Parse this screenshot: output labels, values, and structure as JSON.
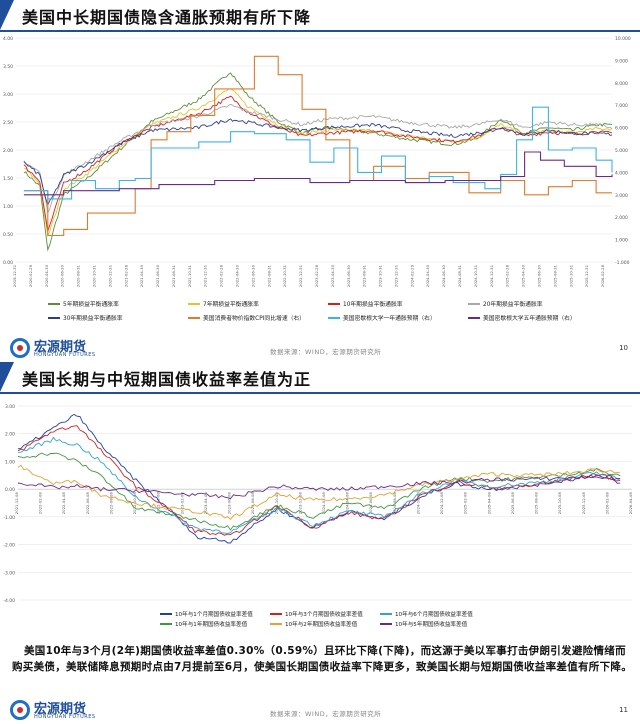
{
  "colors": {
    "accent": "#1f4e9a",
    "source_text": "#888888"
  },
  "brand": {
    "name_cn": "宏源期货",
    "name_en": "HONGYUAN FUTURES"
  },
  "slides": [
    {
      "title": "美国中长期国债隐含通胀预期有所下降",
      "source": "数据来源：WIND，宏源期货研究所",
      "page": "10"
    },
    {
      "title": "美国长期与中短期国债收益率差值为正",
      "source": "数据来源：WIND，宏源期货研究所",
      "page": "11",
      "paragraph": "美国10年与3个月(2年)期国债收益率差值0.30%（0.59%）且环比下降(下降)，而这源于美以军事打击伊朗引发避险情绪而购买美债，美联储降息预期时点由7月提前至6月，使美国长期国债收益率下降更多，致美国长期与短期国债收益率差值有所下降。"
    }
  ],
  "chart_data": [
    {
      "type": "line",
      "title": "",
      "xlabel": "",
      "ylabel": "",
      "ylim": [
        0.0,
        4.0
      ],
      "y_ticks": [
        "0.00",
        "0.50",
        "1.00",
        "1.50",
        "2.00",
        "2.50",
        "3.00",
        "3.50",
        "4.00"
      ],
      "y2lim": [
        -1.0,
        10.0
      ],
      "y2_ticks": [
        "-1.000",
        "1.000",
        "2.000",
        "3.000",
        "4.000",
        "5.000",
        "6.000",
        "7.000",
        "8.000",
        "9.000",
        "10.000"
      ],
      "x_range": [
        "2019-12",
        "2026-03"
      ],
      "x_ticks": [
        "2019-12-31",
        "2020-02-29",
        "2020-04-30",
        "2020-06-30",
        "2020-08-31",
        "2020-10-31",
        "2020-12-31",
        "2021-02-28",
        "2021-04-30",
        "2021-06-30",
        "2021-08-31",
        "2021-10-31",
        "2021-12-31",
        "2022-02-28",
        "2022-04-30",
        "2022-06-30",
        "2022-08-31",
        "2022-10-31",
        "2022-12-31",
        "2023-02-28",
        "2023-04-30",
        "2023-06-30",
        "2023-08-31",
        "2023-10-31",
        "2023-12-31",
        "2024-02-29",
        "2024-04-30",
        "2024-06-30",
        "2024-08-31",
        "2024-10-31",
        "2024-12-31",
        "2025-02-28",
        "2025-04-30",
        "2025-06-30",
        "2025-08-31",
        "2025-10-31",
        "2025-12-31",
        "2026-02-28"
      ],
      "legend_placement": "bottom",
      "series": [
        {
          "name": "5年期损益平衡通胀率",
          "color": "#5b8f3a",
          "axis": "left",
          "x": [
            "2020-01",
            "2020-03",
            "2020-04",
            "2020-06",
            "2020-09",
            "2021-01",
            "2021-05",
            "2021-11",
            "2022-03",
            "2022-05",
            "2022-09",
            "2022-12",
            "2023-03",
            "2023-09",
            "2024-01",
            "2024-07",
            "2024-10",
            "2025-01",
            "2025-04",
            "2025-07",
            "2025-10",
            "2026-01",
            "2026-03"
          ],
          "values": [
            1.62,
            1.35,
            0.2,
            1.2,
            1.5,
            2.0,
            2.5,
            2.9,
            3.4,
            3.0,
            2.5,
            2.3,
            2.4,
            2.3,
            2.2,
            2.1,
            2.2,
            2.55,
            2.3,
            2.4,
            2.35,
            2.45,
            2.45
          ]
        },
        {
          "name": "7年期损益平衡通胀率",
          "color": "#e8c130",
          "axis": "left",
          "x": [
            "2020-01",
            "2020-03",
            "2020-04",
            "2020-06",
            "2020-09",
            "2021-01",
            "2021-05",
            "2021-11",
            "2022-03",
            "2022-05",
            "2022-09",
            "2022-12",
            "2023-03",
            "2023-09",
            "2024-01",
            "2024-07",
            "2024-10",
            "2025-01",
            "2025-04",
            "2025-07",
            "2025-10",
            "2026-01",
            "2026-03"
          ],
          "values": [
            1.68,
            1.4,
            0.45,
            1.3,
            1.58,
            2.05,
            2.45,
            2.75,
            3.1,
            2.8,
            2.45,
            2.3,
            2.35,
            2.35,
            2.25,
            2.15,
            2.22,
            2.45,
            2.28,
            2.35,
            2.3,
            2.38,
            2.38
          ]
        },
        {
          "name": "10年期损益平衡通胀率",
          "color": "#d71f1f",
          "axis": "left",
          "x": [
            "2020-01",
            "2020-03",
            "2020-04",
            "2020-06",
            "2020-09",
            "2021-01",
            "2021-05",
            "2021-11",
            "2022-03",
            "2022-05",
            "2022-09",
            "2022-12",
            "2023-03",
            "2023-09",
            "2024-01",
            "2024-07",
            "2024-10",
            "2025-01",
            "2025-04",
            "2025-07",
            "2025-10",
            "2026-01",
            "2026-03"
          ],
          "values": [
            1.72,
            1.45,
            0.55,
            1.4,
            1.65,
            2.1,
            2.4,
            2.65,
            2.95,
            2.7,
            2.4,
            2.25,
            2.3,
            2.35,
            2.25,
            2.15,
            2.25,
            2.4,
            2.25,
            2.32,
            2.28,
            2.32,
            2.3
          ]
        },
        {
          "name": "20年期损益平衡通胀率",
          "color": "#a8a8a8",
          "axis": "left",
          "x": [
            "2020-01",
            "2020-03",
            "2020-04",
            "2020-06",
            "2020-09",
            "2021-01",
            "2021-05",
            "2021-11",
            "2022-03",
            "2022-05",
            "2022-09",
            "2022-12",
            "2023-03",
            "2023-09",
            "2024-01",
            "2024-07",
            "2024-10",
            "2025-01",
            "2025-04",
            "2025-07",
            "2025-10",
            "2026-01",
            "2026-03"
          ],
          "values": [
            1.8,
            1.6,
            0.9,
            1.55,
            1.8,
            2.15,
            2.45,
            2.6,
            2.8,
            2.7,
            2.55,
            2.45,
            2.55,
            2.6,
            2.5,
            2.4,
            2.45,
            2.55,
            2.4,
            2.5,
            2.45,
            2.45,
            2.4
          ]
        },
        {
          "name": "30年期损益平衡通胀率",
          "color": "#2b3e8c",
          "axis": "left",
          "x": [
            "2020-01",
            "2020-03",
            "2020-04",
            "2020-06",
            "2020-09",
            "2021-01",
            "2021-05",
            "2021-11",
            "2022-03",
            "2022-05",
            "2022-09",
            "2022-12",
            "2023-03",
            "2023-09",
            "2024-01",
            "2024-07",
            "2024-10",
            "2025-01",
            "2025-04",
            "2025-07",
            "2025-10",
            "2026-01",
            "2026-03"
          ],
          "values": [
            1.78,
            1.55,
            1.0,
            1.55,
            1.75,
            2.1,
            2.35,
            2.4,
            2.55,
            2.5,
            2.4,
            2.35,
            2.4,
            2.45,
            2.35,
            2.25,
            2.3,
            2.4,
            2.28,
            2.35,
            2.3,
            2.3,
            2.28
          ]
        },
        {
          "name": "美国消费者物价指数CPI同比增速（右）",
          "color": "#e27a2a",
          "axis": "right",
          "x": [
            "2020-01",
            "2020-04",
            "2020-06",
            "2020-09",
            "2021-01",
            "2021-03",
            "2021-05",
            "2021-07",
            "2021-10",
            "2022-01",
            "2022-06",
            "2022-09",
            "2022-12",
            "2023-03",
            "2023-06",
            "2023-09",
            "2024-01",
            "2024-04",
            "2024-09",
            "2025-01",
            "2025-04",
            "2025-07",
            "2025-10",
            "2026-01",
            "2026-03"
          ],
          "values": [
            2.5,
            0.3,
            0.6,
            1.4,
            1.4,
            2.6,
            5.0,
            5.4,
            6.2,
            7.5,
            9.1,
            8.2,
            6.5,
            5.0,
            3.0,
            3.7,
            3.1,
            3.4,
            2.4,
            3.0,
            2.3,
            2.7,
            3.0,
            2.4,
            2.4
          ]
        },
        {
          "name": "美国密歇根大学一年通胀预期（右）",
          "color": "#3bb4e6",
          "axis": "right",
          "x": [
            "2020-01",
            "2020-04",
            "2020-07",
            "2020-10",
            "2021-01",
            "2021-03",
            "2021-05",
            "2021-08",
            "2021-11",
            "2022-03",
            "2022-06",
            "2022-10",
            "2023-01",
            "2023-04",
            "2023-07",
            "2023-10",
            "2024-01",
            "2024-04",
            "2024-07",
            "2024-11",
            "2025-01",
            "2025-03",
            "2025-05",
            "2025-07",
            "2025-10",
            "2026-01",
            "2026-03"
          ],
          "values": [
            2.5,
            2.1,
            3.0,
            2.6,
            3.0,
            3.1,
            4.6,
            4.6,
            4.9,
            5.4,
            5.3,
            5.0,
            3.9,
            4.6,
            3.4,
            4.2,
            2.9,
            3.2,
            2.9,
            2.6,
            3.3,
            5.0,
            6.6,
            4.5,
            4.6,
            4.0,
            3.4
          ]
        },
        {
          "name": "美国密歇根大学五年通胀预期（右）",
          "color": "#6a2a8c",
          "axis": "right",
          "x": [
            "2020-01",
            "2020-06",
            "2021-01",
            "2021-06",
            "2022-01",
            "2022-06",
            "2023-01",
            "2023-06",
            "2024-01",
            "2024-06",
            "2025-01",
            "2025-04",
            "2025-06",
            "2025-09",
            "2026-01",
            "2026-03"
          ],
          "values": [
            2.3,
            2.5,
            2.6,
            2.8,
            3.0,
            3.1,
            2.9,
            3.0,
            2.9,
            3.0,
            3.2,
            4.4,
            4.0,
            3.7,
            3.2,
            3.3
          ]
        }
      ]
    },
    {
      "type": "line",
      "title": "",
      "xlabel": "",
      "ylabel": "",
      "ylim": [
        -4.0,
        3.0
      ],
      "y_ticks": [
        "-4.00",
        "-3.00",
        "-2.00",
        "-1.00",
        "0.00",
        "1.00",
        "2.00",
        "3.00"
      ],
      "x_range": [
        "2021-12",
        "2026-04"
      ],
      "x_ticks": [
        "2021-12-08",
        "2022-02-08",
        "2022-04-08",
        "2022-06-08",
        "2022-08-08",
        "2022-10-08",
        "2022-12-08",
        "2023-02-08",
        "2023-04-08",
        "2023-06-08",
        "2023-08-08",
        "2023-10-08",
        "2023-12-08",
        "2024-02-08",
        "2024-04-08",
        "2024-06-08",
        "2024-08-08",
        "2024-10-08",
        "2024-12-08",
        "2025-02-08",
        "2025-04-08",
        "2025-06-08",
        "2025-08-08",
        "2025-10-08",
        "2025-12-08",
        "2026-02-08",
        "2026-04-08"
      ],
      "legend_placement": "bottom",
      "series": [
        {
          "name": "10年与1个月期国债收益率差值",
          "color": "#1f3ea8",
          "x": [
            "2021-12",
            "2022-03",
            "2022-05",
            "2022-07",
            "2022-10",
            "2023-01",
            "2023-03",
            "2023-06",
            "2023-10",
            "2024-01",
            "2024-04",
            "2024-07",
            "2024-10",
            "2025-01",
            "2025-04",
            "2025-07",
            "2025-10",
            "2026-01",
            "2026-03"
          ],
          "values": [
            1.4,
            2.2,
            2.7,
            1.6,
            0.3,
            -0.8,
            -1.7,
            -1.9,
            -0.7,
            -1.4,
            -0.8,
            -1.1,
            -0.3,
            0.2,
            0.0,
            0.1,
            0.3,
            0.5,
            0.2
          ]
        },
        {
          "name": "10年与3个月期国债收益率差值",
          "color": "#d71f1f",
          "x": [
            "2021-12",
            "2022-03",
            "2022-05",
            "2022-07",
            "2022-10",
            "2023-01",
            "2023-03",
            "2023-06",
            "2023-10",
            "2024-01",
            "2024-04",
            "2024-07",
            "2024-10",
            "2025-01",
            "2025-04",
            "2025-07",
            "2025-10",
            "2026-01",
            "2026-03"
          ],
          "values": [
            1.35,
            2.1,
            2.3,
            1.4,
            0.1,
            -0.8,
            -1.5,
            -1.7,
            -0.6,
            -1.4,
            -0.85,
            -1.1,
            -0.25,
            0.25,
            0.05,
            0.1,
            0.3,
            0.55,
            0.3
          ]
        },
        {
          "name": "10年与6个月期国债收益率差值",
          "color": "#2fa3d6",
          "x": [
            "2021-12",
            "2022-03",
            "2022-05",
            "2022-07",
            "2022-10",
            "2023-01",
            "2023-03",
            "2023-06",
            "2023-10",
            "2024-01",
            "2024-04",
            "2024-07",
            "2024-10",
            "2025-01",
            "2025-04",
            "2025-07",
            "2025-10",
            "2026-01",
            "2026-03"
          ],
          "values": [
            1.3,
            1.8,
            1.6,
            1.0,
            -0.3,
            -0.95,
            -1.4,
            -1.55,
            -0.7,
            -1.3,
            -0.8,
            -1.0,
            -0.2,
            0.3,
            0.1,
            0.2,
            0.35,
            0.6,
            0.35
          ]
        },
        {
          "name": "10年与1年期国债收益率差值",
          "color": "#3f9a3f",
          "x": [
            "2021-12",
            "2022-03",
            "2022-05",
            "2022-07",
            "2022-10",
            "2023-01",
            "2023-03",
            "2023-06",
            "2023-10",
            "2024-01",
            "2024-04",
            "2024-07",
            "2024-10",
            "2025-01",
            "2025-04",
            "2025-07",
            "2025-10",
            "2026-01",
            "2026-03"
          ],
          "values": [
            1.15,
            1.3,
            1.0,
            0.5,
            -0.7,
            -0.9,
            -1.1,
            -1.4,
            -0.6,
            -1.0,
            -0.5,
            -0.7,
            0.0,
            0.4,
            0.3,
            0.4,
            0.5,
            0.7,
            0.45
          ]
        },
        {
          "name": "10年与2年期国债收益率差值",
          "color": "#e8a030",
          "x": [
            "2021-12",
            "2022-03",
            "2022-05",
            "2022-07",
            "2022-10",
            "2023-01",
            "2023-03",
            "2023-06",
            "2023-10",
            "2024-01",
            "2024-04",
            "2024-07",
            "2024-10",
            "2025-01",
            "2025-04",
            "2025-07",
            "2025-10",
            "2026-01",
            "2026-03"
          ],
          "values": [
            0.85,
            0.2,
            0.3,
            -0.2,
            -0.5,
            -0.7,
            -0.8,
            -1.05,
            -0.2,
            -0.4,
            -0.35,
            -0.2,
            0.15,
            0.35,
            0.55,
            0.5,
            0.55,
            0.7,
            0.59
          ]
        },
        {
          "name": "10年与5年期国债收益率差值",
          "color": "#6a2a8c",
          "x": [
            "2021-12",
            "2022-03",
            "2022-05",
            "2022-07",
            "2022-10",
            "2023-01",
            "2023-03",
            "2023-06",
            "2023-10",
            "2024-01",
            "2024-04",
            "2024-07",
            "2024-10",
            "2025-01",
            "2025-04",
            "2025-07",
            "2025-10",
            "2026-01",
            "2026-03"
          ],
          "values": [
            0.25,
            0.05,
            0.1,
            0.0,
            -0.05,
            -0.15,
            -0.2,
            -0.3,
            0.1,
            0.0,
            0.0,
            0.1,
            0.2,
            0.25,
            0.35,
            0.35,
            0.4,
            0.45,
            0.4
          ]
        }
      ]
    }
  ]
}
